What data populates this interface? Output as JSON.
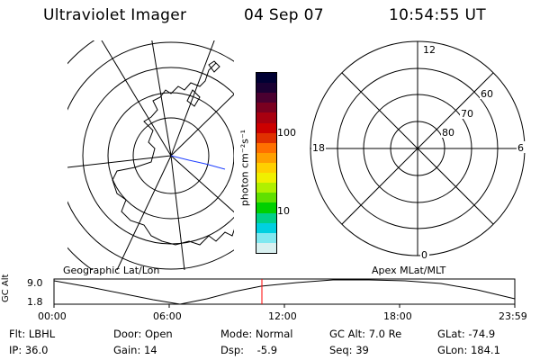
{
  "header": {
    "instrument": "Ultraviolet Imager",
    "date": "04 Sep 07",
    "time": "10:54:55 UT"
  },
  "colorbar": {
    "label": "photon cm⁻²s⁻¹",
    "ticks": [
      "100",
      "10"
    ],
    "colors": [
      "#000033",
      "#1a0033",
      "#4a0030",
      "#7a0020",
      "#a80010",
      "#cc0000",
      "#e03000",
      "#ff7000",
      "#ffa000",
      "#ffd000",
      "#f0f000",
      "#b0f000",
      "#60e000",
      "#00d000",
      "#00d088",
      "#00d0e0",
      "#80e8f0",
      "#d8f0f0"
    ]
  },
  "map_left": {
    "label": "Geographic Lat/Lon",
    "meridian_color": "#2040ff"
  },
  "map_right": {
    "label": "Apex MLat/MLT",
    "mlt_labels": {
      "top": "12",
      "left": "18",
      "right": "6",
      "bottom": "0"
    },
    "mlat_labels": [
      "60",
      "70",
      "80"
    ]
  },
  "altitude_plot": {
    "ylabel": "GC Alt",
    "yticks": [
      "9.0",
      "1.8"
    ],
    "xticks": [
      "00:00",
      "06:00",
      "12:00",
      "18:00",
      "23:59"
    ],
    "marker_color": "#ff0000"
  },
  "info": {
    "flt": "Flt: LBHL",
    "ip": "IP: 36.0",
    "door": "Door: Open",
    "gain": "Gain: 14",
    "mode": "Mode: Normal",
    "dsp": "Dsp:    -5.9",
    "gcalt": "GC Alt: 7.0 Re",
    "seq": "Seq: 39",
    "glat": "GLat: -74.9",
    "glon": "GLon: 184.1"
  }
}
